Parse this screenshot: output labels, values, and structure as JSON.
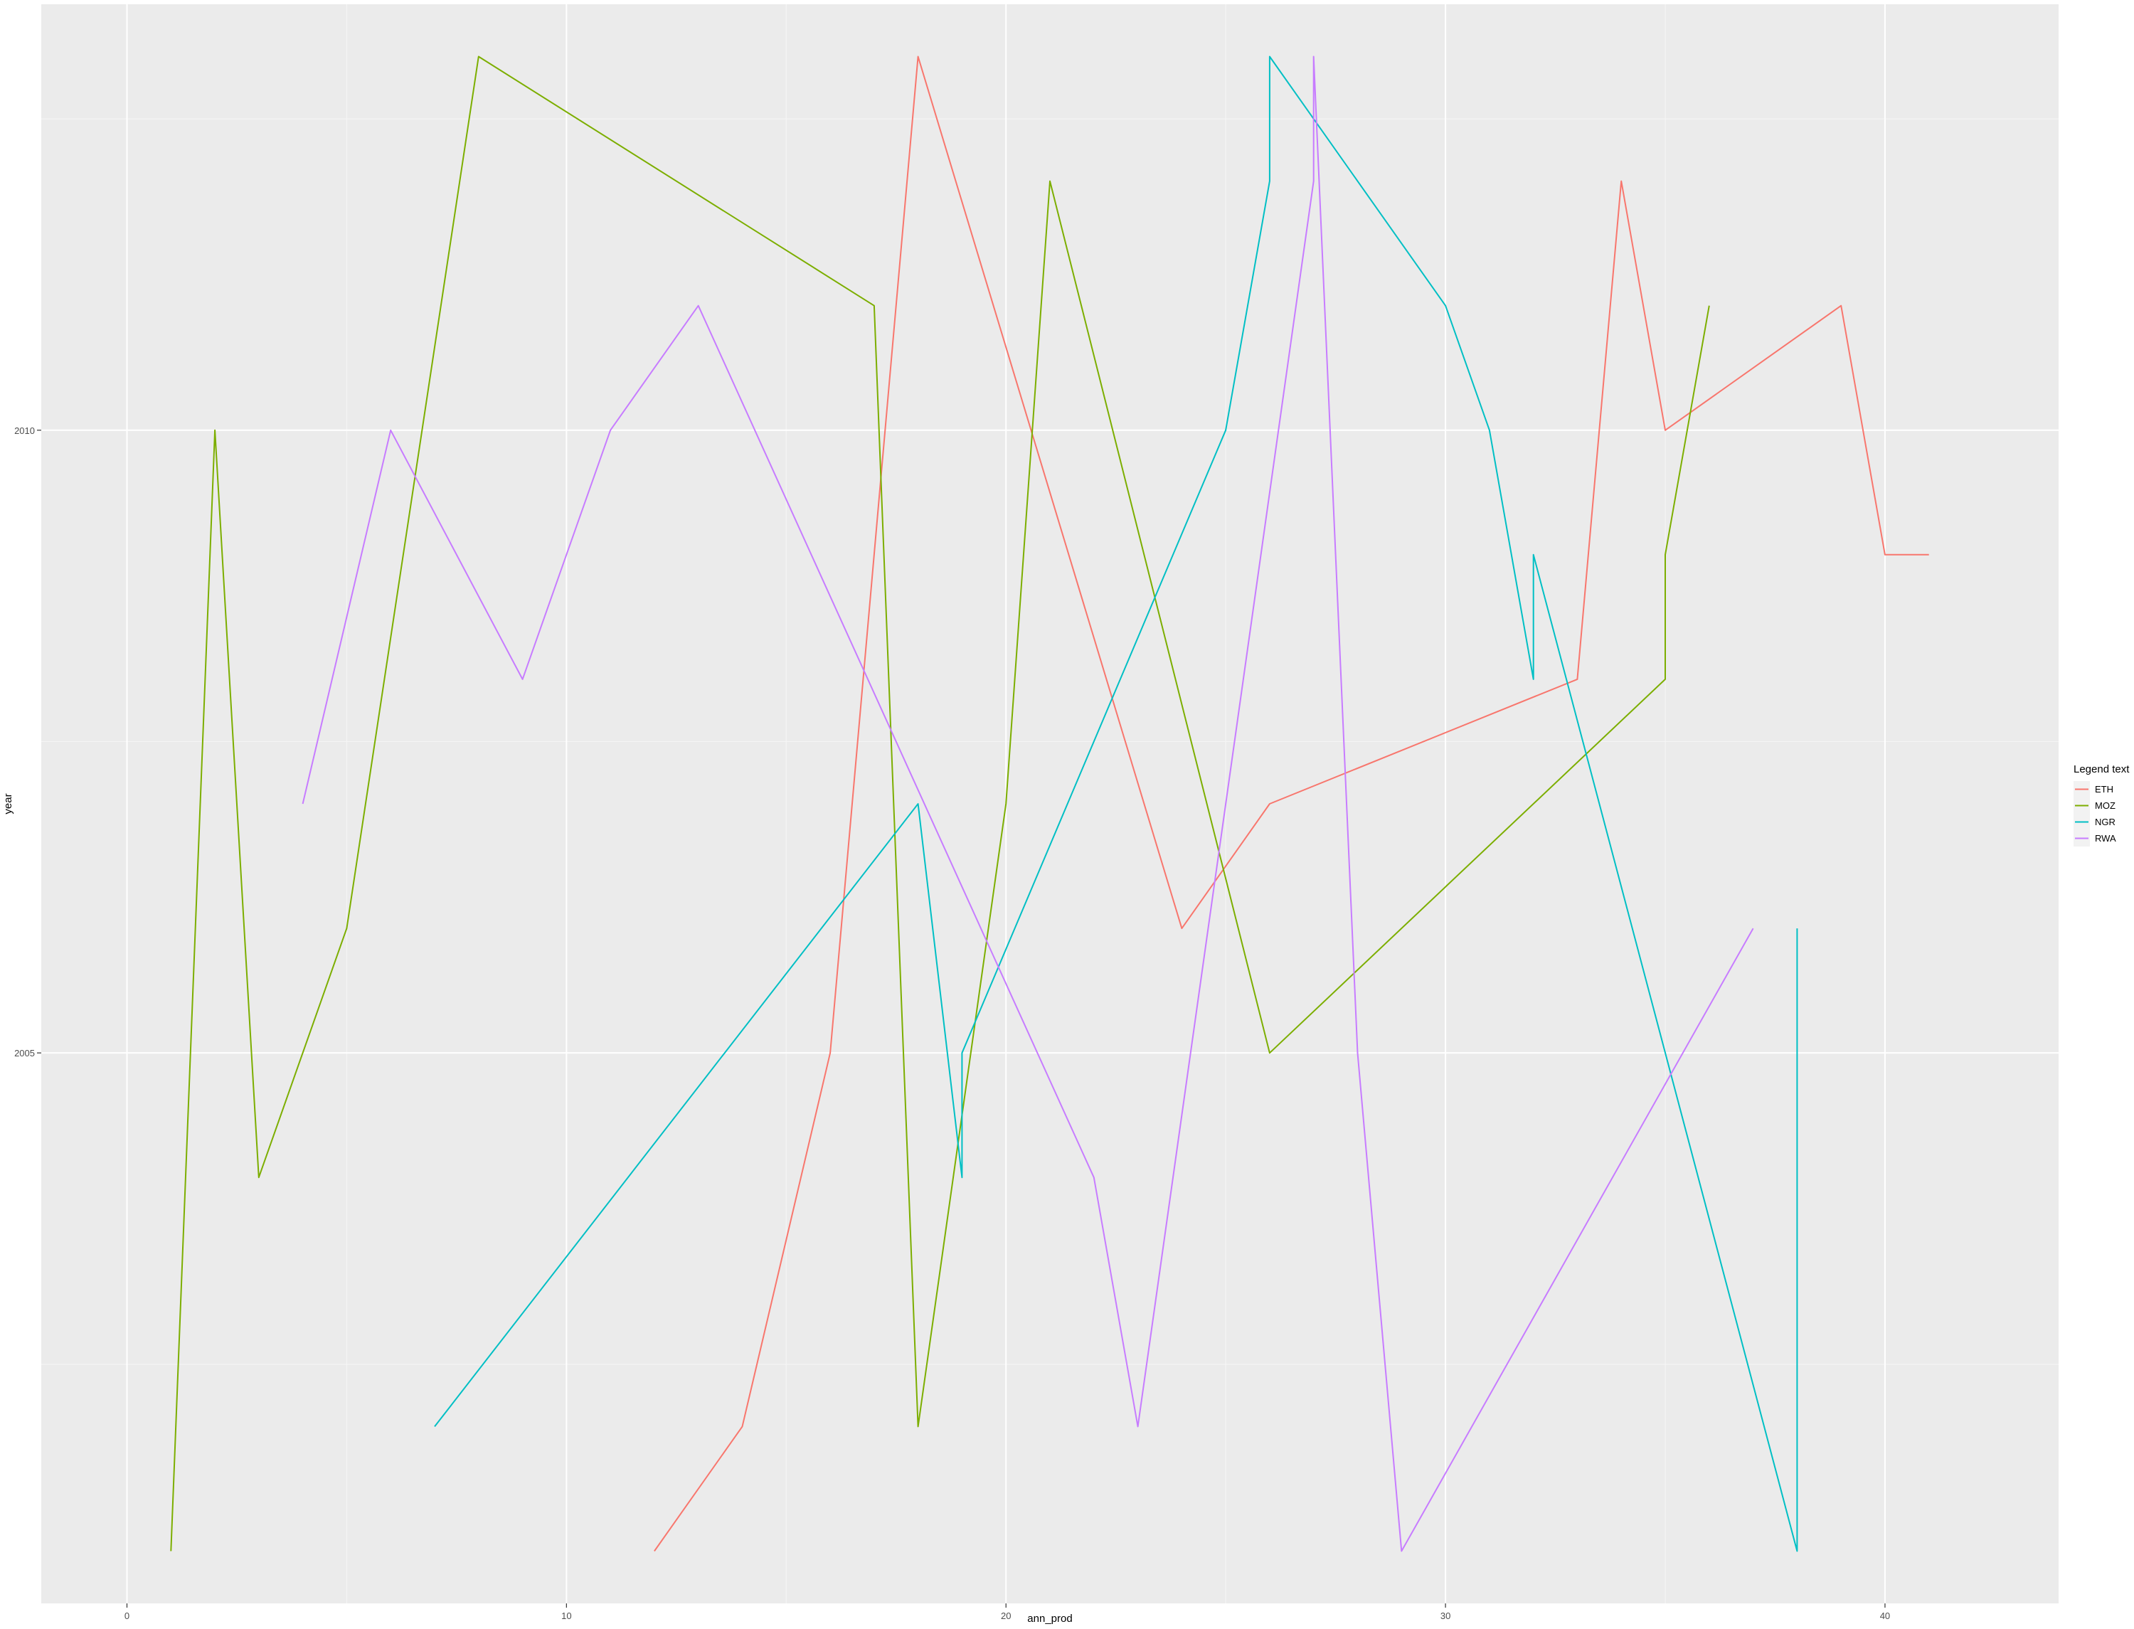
{
  "chart_data": {
    "type": "line",
    "title": "",
    "xlabel": "ann_prod",
    "ylabel": "year",
    "xlim": [
      -1.95,
      43.95
    ],
    "ylim": [
      2000.58,
      2013.42
    ],
    "x_ticks": [
      0,
      10,
      20,
      30,
      40
    ],
    "x_tick_labels": [
      "0",
      "10",
      "20",
      "30",
      "40"
    ],
    "y_ticks": [
      2005,
      2010
    ],
    "y_tick_labels": [
      "2005",
      "2010"
    ],
    "grid": true,
    "legend": {
      "title": "Legend text",
      "position": "right"
    },
    "series": [
      {
        "name": "ETH",
        "color": "#F8766D",
        "points": [
          [
            12,
            2001
          ],
          [
            14,
            2002
          ],
          [
            16,
            2005
          ],
          [
            18,
            2013
          ],
          [
            24,
            2006
          ],
          [
            26,
            2007
          ],
          [
            33,
            2008
          ],
          [
            34,
            2012
          ],
          [
            35,
            2010
          ],
          [
            39,
            2011
          ],
          [
            40,
            2009
          ],
          [
            41,
            2009
          ]
        ]
      },
      {
        "name": "MOZ",
        "color": "#7CAE00",
        "points": [
          [
            1,
            2001
          ],
          [
            2,
            2010
          ],
          [
            3,
            2004
          ],
          [
            5,
            2006
          ],
          [
            8,
            2013
          ],
          [
            17,
            2011
          ],
          [
            18,
            2002
          ],
          [
            20,
            2007
          ],
          [
            21,
            2012
          ],
          [
            26,
            2005
          ],
          [
            35,
            2008
          ],
          [
            35,
            2009
          ],
          [
            36,
            2011
          ]
        ]
      },
      {
        "name": "NGR",
        "color": "#00BFC4",
        "points": [
          [
            7,
            2002
          ],
          [
            18,
            2007
          ],
          [
            19,
            2004
          ],
          [
            19,
            2005
          ],
          [
            25,
            2010
          ],
          [
            26,
            2012
          ],
          [
            26,
            2013
          ],
          [
            30,
            2011
          ],
          [
            31,
            2010
          ],
          [
            32,
            2008
          ],
          [
            32,
            2009
          ],
          [
            38,
            2001
          ],
          [
            38,
            2006
          ]
        ]
      },
      {
        "name": "RWA",
        "color": "#C77CFF",
        "points": [
          [
            4,
            2007
          ],
          [
            6,
            2010
          ],
          [
            9,
            2008
          ],
          [
            10,
            2009
          ],
          [
            11,
            2010
          ],
          [
            13,
            2011
          ],
          [
            22,
            2004
          ],
          [
            23,
            2002
          ],
          [
            27,
            2012
          ],
          [
            27,
            2013
          ],
          [
            28,
            2005
          ],
          [
            29,
            2001
          ],
          [
            37,
            2006
          ]
        ]
      }
    ]
  }
}
